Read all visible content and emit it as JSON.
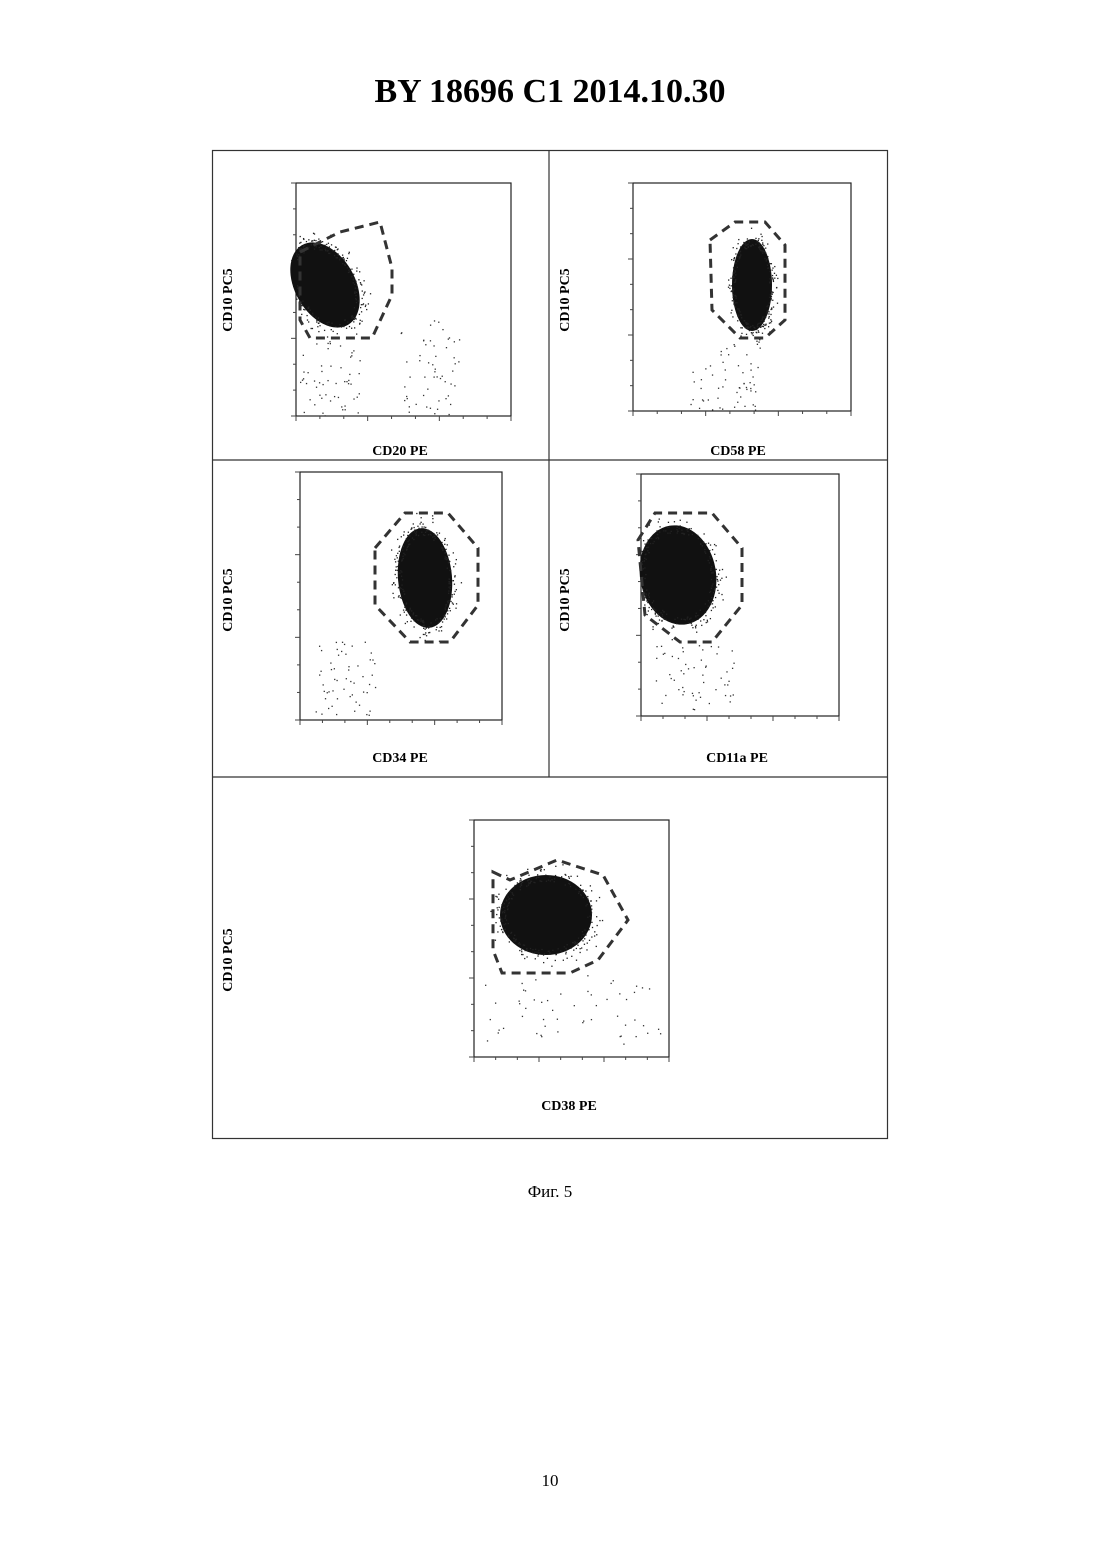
{
  "header": {
    "title": "BY  18696  C1  2014.10.30"
  },
  "figure": {
    "panels": [
      {
        "y_label": "CD10 PC5",
        "x_label": "CD20 PE"
      },
      {
        "y_label": "CD10 PC5",
        "x_label": "CD58 PE"
      },
      {
        "y_label": "CD10 PC5",
        "x_label": "CD34 PE"
      },
      {
        "y_label": "CD10 PC5",
        "x_label": "CD11a PE"
      },
      {
        "y_label": "CD10 PC5",
        "x_label": "CD38 PE"
      }
    ],
    "caption": "Фиг. 5"
  },
  "page_number": "10"
}
